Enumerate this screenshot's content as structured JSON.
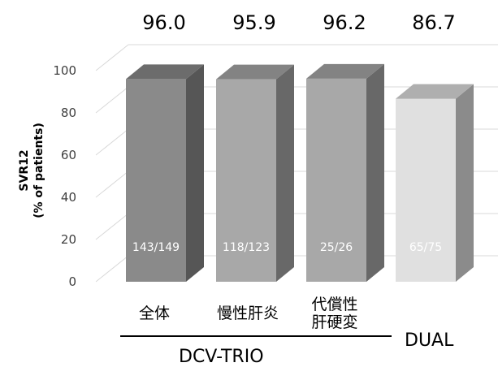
{
  "chart_data": {
    "type": "bar",
    "categories": [
      "全体",
      "慢性肝炎",
      "代償性\n肝硬変",
      ""
    ],
    "values": [
      96.0,
      95.9,
      96.2,
      86.7
    ],
    "value_labels": [
      "96.0",
      "95.9",
      "96.2",
      "86.7"
    ],
    "bar_labels": [
      "143/149",
      "118/123",
      "25/26",
      "65/75"
    ],
    "bar_colors": [
      "#8a8a8a",
      "#a8a8a8",
      "#a8a8a8",
      "#e0e0e0"
    ],
    "ylabel_line1": "SVR12",
    "ylabel_line2": "(% of patients)",
    "ylim": [
      0,
      100
    ],
    "yticks": [
      "0",
      "20",
      "40",
      "60",
      "80",
      "100"
    ],
    "groups": [
      {
        "label": "DCV-TRIO"
      },
      {
        "label": "DUAL"
      }
    ],
    "grid": true,
    "style": "3d"
  }
}
